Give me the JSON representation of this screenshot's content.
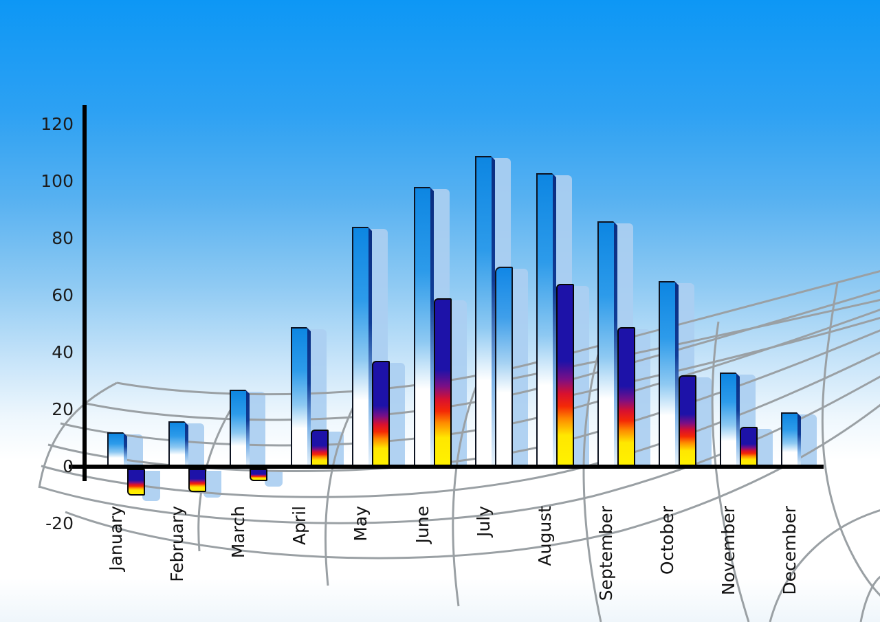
{
  "chart_data": {
    "type": "bar",
    "title": "",
    "categories": [
      "January",
      "February",
      "March",
      "April",
      "May",
      "June",
      "July",
      "August",
      "September",
      "October",
      "November",
      "December"
    ],
    "series": [
      {
        "name": "primary-blue-bars",
        "values": [
          12,
          16,
          27,
          49,
          84,
          98,
          109,
          103,
          86,
          65,
          33,
          19
        ]
      },
      {
        "name": "secondary-flame-bars",
        "values": [
          -10,
          -9,
          -5,
          13,
          37,
          59,
          70,
          64,
          49,
          32,
          14,
          null
        ],
        "bar_styles": [
          "flame",
          "flame",
          "flame",
          "flame",
          "flame",
          "flame",
          "blue",
          "flame",
          "flame",
          "flame",
          "flame",
          null
        ]
      }
    ],
    "xlabel": "",
    "ylabel": "",
    "ylim": [
      -20,
      120
    ],
    "yticks": [
      120,
      100,
      80,
      60,
      40,
      20,
      0,
      -20
    ],
    "legend": "none",
    "background": "sky-blue gradient with decorative curved perspective grid"
  },
  "colors": {
    "sky_top": "#0d97f5",
    "bar_blue_top": "#0d86e2",
    "bar_edge_navy": "#0a2d80",
    "flame_navy": "#1d12a8",
    "flame_red": "#e81313",
    "flame_yellow": "#ffef00",
    "shadow_blue": "#abcff1",
    "grid_line": "#9aa0a4",
    "axis": "#000000"
  }
}
